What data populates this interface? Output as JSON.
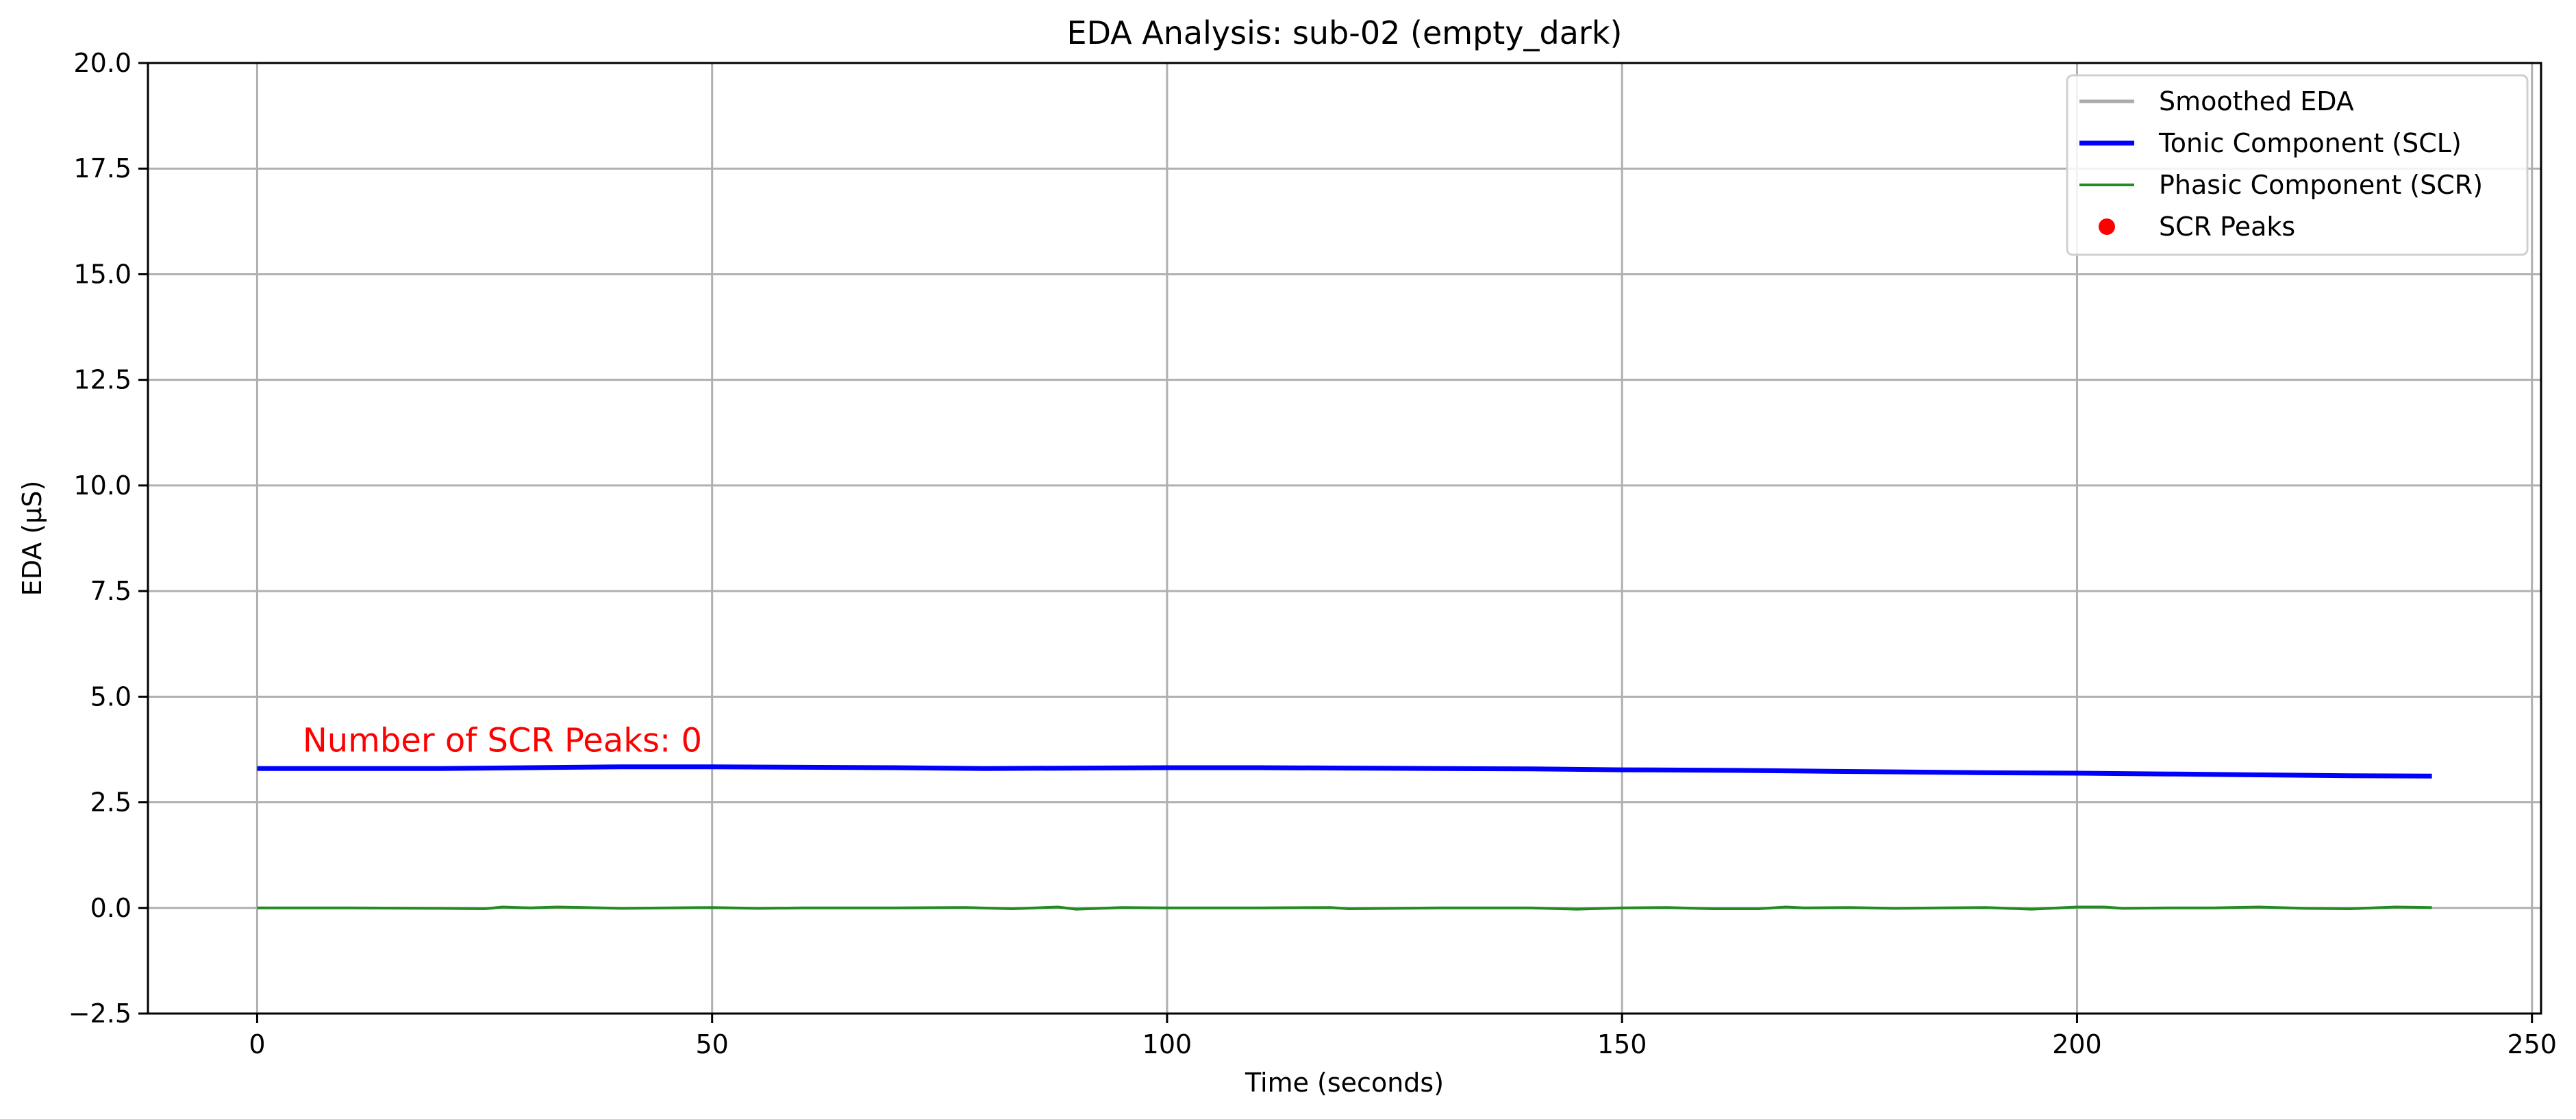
{
  "chart_data": {
    "type": "line",
    "title": "EDA Analysis: sub-02 (empty_dark)",
    "xlabel": "Time (seconds)",
    "ylabel": "EDA (µS)",
    "xlim": [
      -12,
      251
    ],
    "ylim": [
      -2.5,
      20.0
    ],
    "x_ticks": [
      0,
      50,
      100,
      150,
      200,
      250
    ],
    "x_tick_labels": [
      "0",
      "50",
      "100",
      "150",
      "200",
      "250"
    ],
    "y_ticks": [
      -2.5,
      0.0,
      2.5,
      5.0,
      7.5,
      10.0,
      12.5,
      15.0,
      17.5,
      20.0
    ],
    "y_tick_labels": [
      "−2.5",
      "0.0",
      "2.5",
      "5.0",
      "7.5",
      "10.0",
      "12.5",
      "15.0",
      "17.5",
      "20.0"
    ],
    "grid": true,
    "legend_position": "top-right",
    "colors": {
      "smoothed": "#aaaaaa",
      "tonic": "#0000ff",
      "phasic": "#228b22",
      "peaks": "#ff0000",
      "grid": "#b0b0b0"
    },
    "series": [
      {
        "name": "Smoothed EDA",
        "key": "smoothed",
        "x": [],
        "y": []
      },
      {
        "name": "Tonic Component (SCL)",
        "key": "tonic",
        "x": [
          0,
          10,
          20,
          30,
          40,
          50,
          60,
          70,
          80,
          90,
          100,
          110,
          120,
          130,
          140,
          150,
          160,
          170,
          180,
          190,
          200,
          210,
          220,
          230,
          239
        ],
        "y": [
          3.3,
          3.3,
          3.3,
          3.32,
          3.34,
          3.34,
          3.33,
          3.32,
          3.3,
          3.31,
          3.32,
          3.32,
          3.31,
          3.3,
          3.29,
          3.27,
          3.26,
          3.24,
          3.22,
          3.2,
          3.19,
          3.17,
          3.15,
          3.13,
          3.12
        ]
      },
      {
        "name": "Phasic Component (SCR)",
        "key": "phasic",
        "x": [
          0,
          10,
          20,
          25,
          27,
          30,
          33,
          36,
          40,
          50,
          55,
          60,
          70,
          78,
          83,
          88,
          90,
          95,
          100,
          110,
          118,
          120,
          130,
          140,
          145,
          150,
          155,
          160,
          165,
          168,
          170,
          175,
          180,
          185,
          190,
          195,
          200,
          203,
          205,
          210,
          215,
          220,
          225,
          230,
          235,
          239
        ],
        "y": [
          0.0,
          0.0,
          -0.01,
          -0.02,
          0.02,
          0.0,
          0.02,
          0.01,
          -0.01,
          0.01,
          -0.01,
          0.0,
          0.0,
          0.01,
          -0.02,
          0.02,
          -0.03,
          0.01,
          0.0,
          0.0,
          0.01,
          -0.02,
          0.0,
          0.0,
          -0.03,
          0.0,
          0.01,
          -0.02,
          -0.02,
          0.02,
          0.0,
          0.01,
          -0.01,
          0.0,
          0.01,
          -0.03,
          0.02,
          0.02,
          -0.01,
          0.0,
          0.0,
          0.02,
          -0.01,
          -0.02,
          0.02,
          0.01
        ]
      },
      {
        "name": "SCR Peaks",
        "key": "peaks",
        "x": [],
        "y": []
      }
    ],
    "annotations": [
      {
        "text": "Number of SCR Peaks: 0",
        "x": 5,
        "y": 3.7,
        "color": "#ff0000"
      }
    ]
  }
}
